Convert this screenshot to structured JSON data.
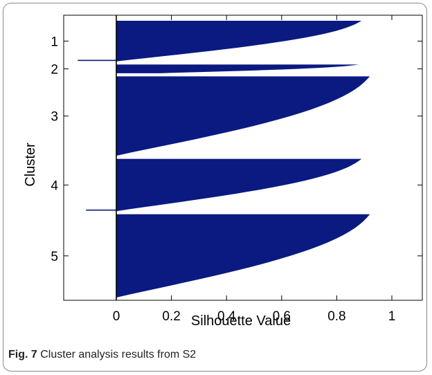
{
  "caption": {
    "label": "Fig. 7",
    "text": "Cluster analysis results from S2"
  },
  "chart_data": {
    "type": "silhouette",
    "xlabel": "Silhouette Value",
    "ylabel": "Cluster",
    "xlim": [
      -0.2,
      1.1
    ],
    "xticks": [
      0,
      0.2,
      0.4,
      0.6,
      0.8,
      1
    ],
    "xtick_labels": [
      "0",
      "0.2",
      "0.4",
      "0.6",
      "0.8",
      "1"
    ],
    "bar_color": "#0a1a80",
    "clusters": [
      {
        "label": "1",
        "max": 0.89,
        "min": 0.0,
        "outlier": -0.14,
        "size": 42
      },
      {
        "label": "2",
        "max": 0.88,
        "min": 0.16,
        "outlier": null,
        "size": 9
      },
      {
        "label": "3",
        "max": 0.92,
        "min": 0.0,
        "outlier": null,
        "size": 82
      },
      {
        "label": "4",
        "max": 0.89,
        "min": 0.0,
        "outlier": -0.11,
        "size": 54
      },
      {
        "label": "5",
        "max": 0.92,
        "min": 0.0,
        "outlier": null,
        "size": 86
      }
    ]
  }
}
